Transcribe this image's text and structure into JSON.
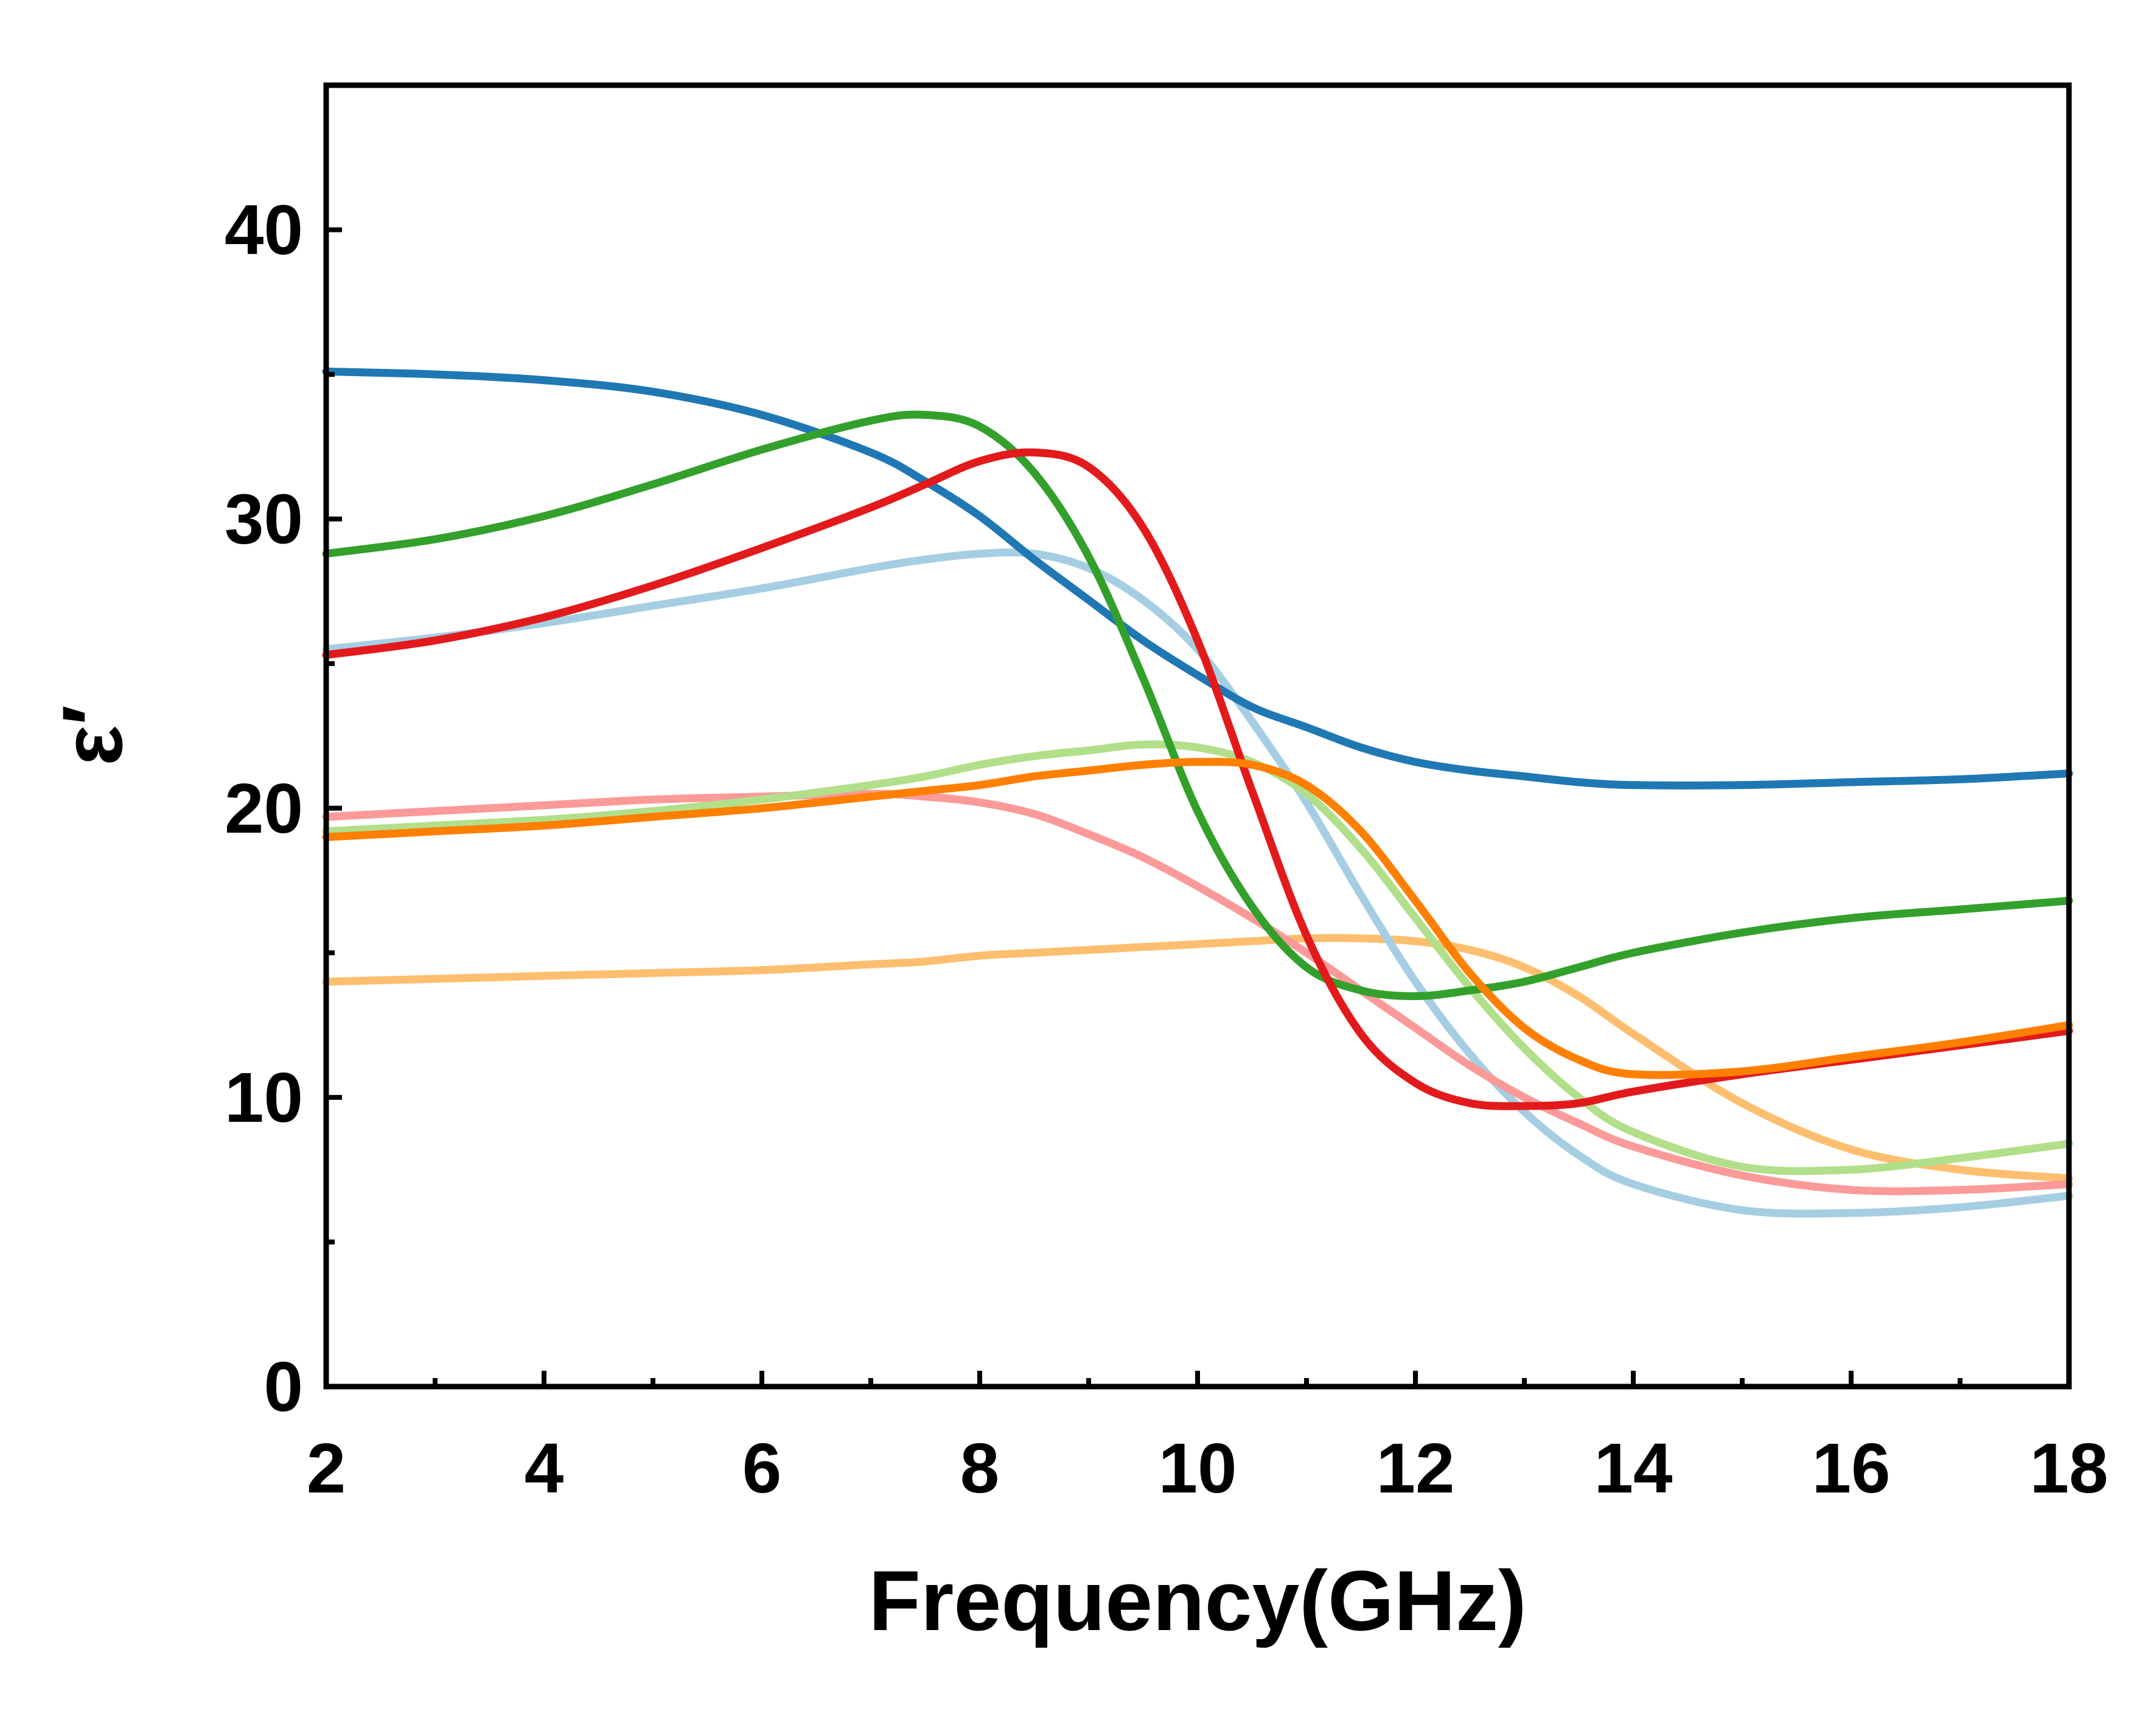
{
  "chart_data": {
    "type": "line",
    "title": "",
    "xlabel": "Frequency(GHz)",
    "ylabel": "ε′",
    "xlim": [
      2,
      18
    ],
    "ylim": [
      0,
      45
    ],
    "xticks": [
      "2",
      "4",
      "6",
      "8",
      "10",
      "12",
      "14",
      "16",
      "18"
    ],
    "yticks": [
      "0",
      "10",
      "20",
      "30",
      "40"
    ],
    "grid": false,
    "legend": "none",
    "x": [
      2,
      3,
      4,
      5,
      6,
      7,
      7.5,
      8,
      8.5,
      9,
      9.5,
      10,
      10.5,
      11,
      11.5,
      12,
      12.5,
      13,
      13.5,
      14,
      15,
      16,
      17,
      18
    ],
    "series": [
      {
        "name": "series-light-orange",
        "color": "#FDBF6F",
        "values": [
          14.0,
          14.1,
          14.2,
          14.3,
          14.4,
          14.6,
          14.7,
          14.9,
          15.0,
          15.1,
          15.2,
          15.3,
          15.4,
          15.5,
          15.5,
          15.4,
          15.1,
          14.5,
          13.5,
          12.2,
          9.8,
          8.2,
          7.5,
          7.2
        ]
      },
      {
        "name": "series-light-blue",
        "color": "#A6CEE3",
        "values": [
          25.5,
          25.9,
          26.4,
          27.0,
          27.6,
          28.3,
          28.6,
          28.8,
          28.8,
          28.3,
          27.2,
          25.5,
          23.0,
          20.2,
          17.0,
          14.0,
          11.5,
          9.5,
          8.0,
          7.0,
          6.1,
          6.0,
          6.2,
          6.6
        ]
      },
      {
        "name": "series-pink",
        "color": "#FB9A99",
        "values": [
          19.7,
          19.9,
          20.1,
          20.3,
          20.4,
          20.5,
          20.4,
          20.2,
          19.8,
          19.1,
          18.3,
          17.3,
          16.2,
          15.0,
          13.7,
          12.4,
          11.1,
          10.0,
          9.1,
          8.3,
          7.3,
          6.8,
          6.8,
          7.0
        ]
      },
      {
        "name": "series-light-green",
        "color": "#B2DF8A",
        "values": [
          19.2,
          19.4,
          19.6,
          19.9,
          20.3,
          20.8,
          21.1,
          21.5,
          21.8,
          22.0,
          22.2,
          22.1,
          21.6,
          20.5,
          18.6,
          16.2,
          13.8,
          11.7,
          10.0,
          8.8,
          7.6,
          7.5,
          7.9,
          8.4
        ]
      },
      {
        "name": "series-dark-blue",
        "color": "#1F78B4",
        "values": [
          35.1,
          35.0,
          34.8,
          34.4,
          33.6,
          32.3,
          31.3,
          30.1,
          28.6,
          27.2,
          25.8,
          24.6,
          23.5,
          22.8,
          22.1,
          21.6,
          21.3,
          21.1,
          20.9,
          20.8,
          20.8,
          20.9,
          21.0,
          21.2
        ]
      },
      {
        "name": "series-green",
        "color": "#33A02C",
        "values": [
          28.8,
          29.3,
          30.1,
          31.2,
          32.4,
          33.4,
          33.6,
          33.2,
          31.6,
          28.7,
          24.5,
          19.9,
          16.6,
          14.5,
          13.7,
          13.5,
          13.7,
          14.0,
          14.5,
          15.0,
          15.7,
          16.2,
          16.5,
          16.8
        ]
      },
      {
        "name": "series-red",
        "color": "#E31A1C",
        "values": [
          25.3,
          25.8,
          26.6,
          27.7,
          29.0,
          30.4,
          31.2,
          32.0,
          32.3,
          31.8,
          29.7,
          25.8,
          20.6,
          15.6,
          12.2,
          10.5,
          9.8,
          9.7,
          9.8,
          10.2,
          10.8,
          11.3,
          11.8,
          12.3
        ]
      },
      {
        "name": "series-orange",
        "color": "#FF7F00",
        "values": [
          19.0,
          19.2,
          19.4,
          19.7,
          20.0,
          20.4,
          20.6,
          20.8,
          21.1,
          21.3,
          21.5,
          21.6,
          21.5,
          20.8,
          19.2,
          16.8,
          14.3,
          12.4,
          11.3,
          10.8,
          10.9,
          11.4,
          11.9,
          12.5
        ]
      }
    ]
  }
}
